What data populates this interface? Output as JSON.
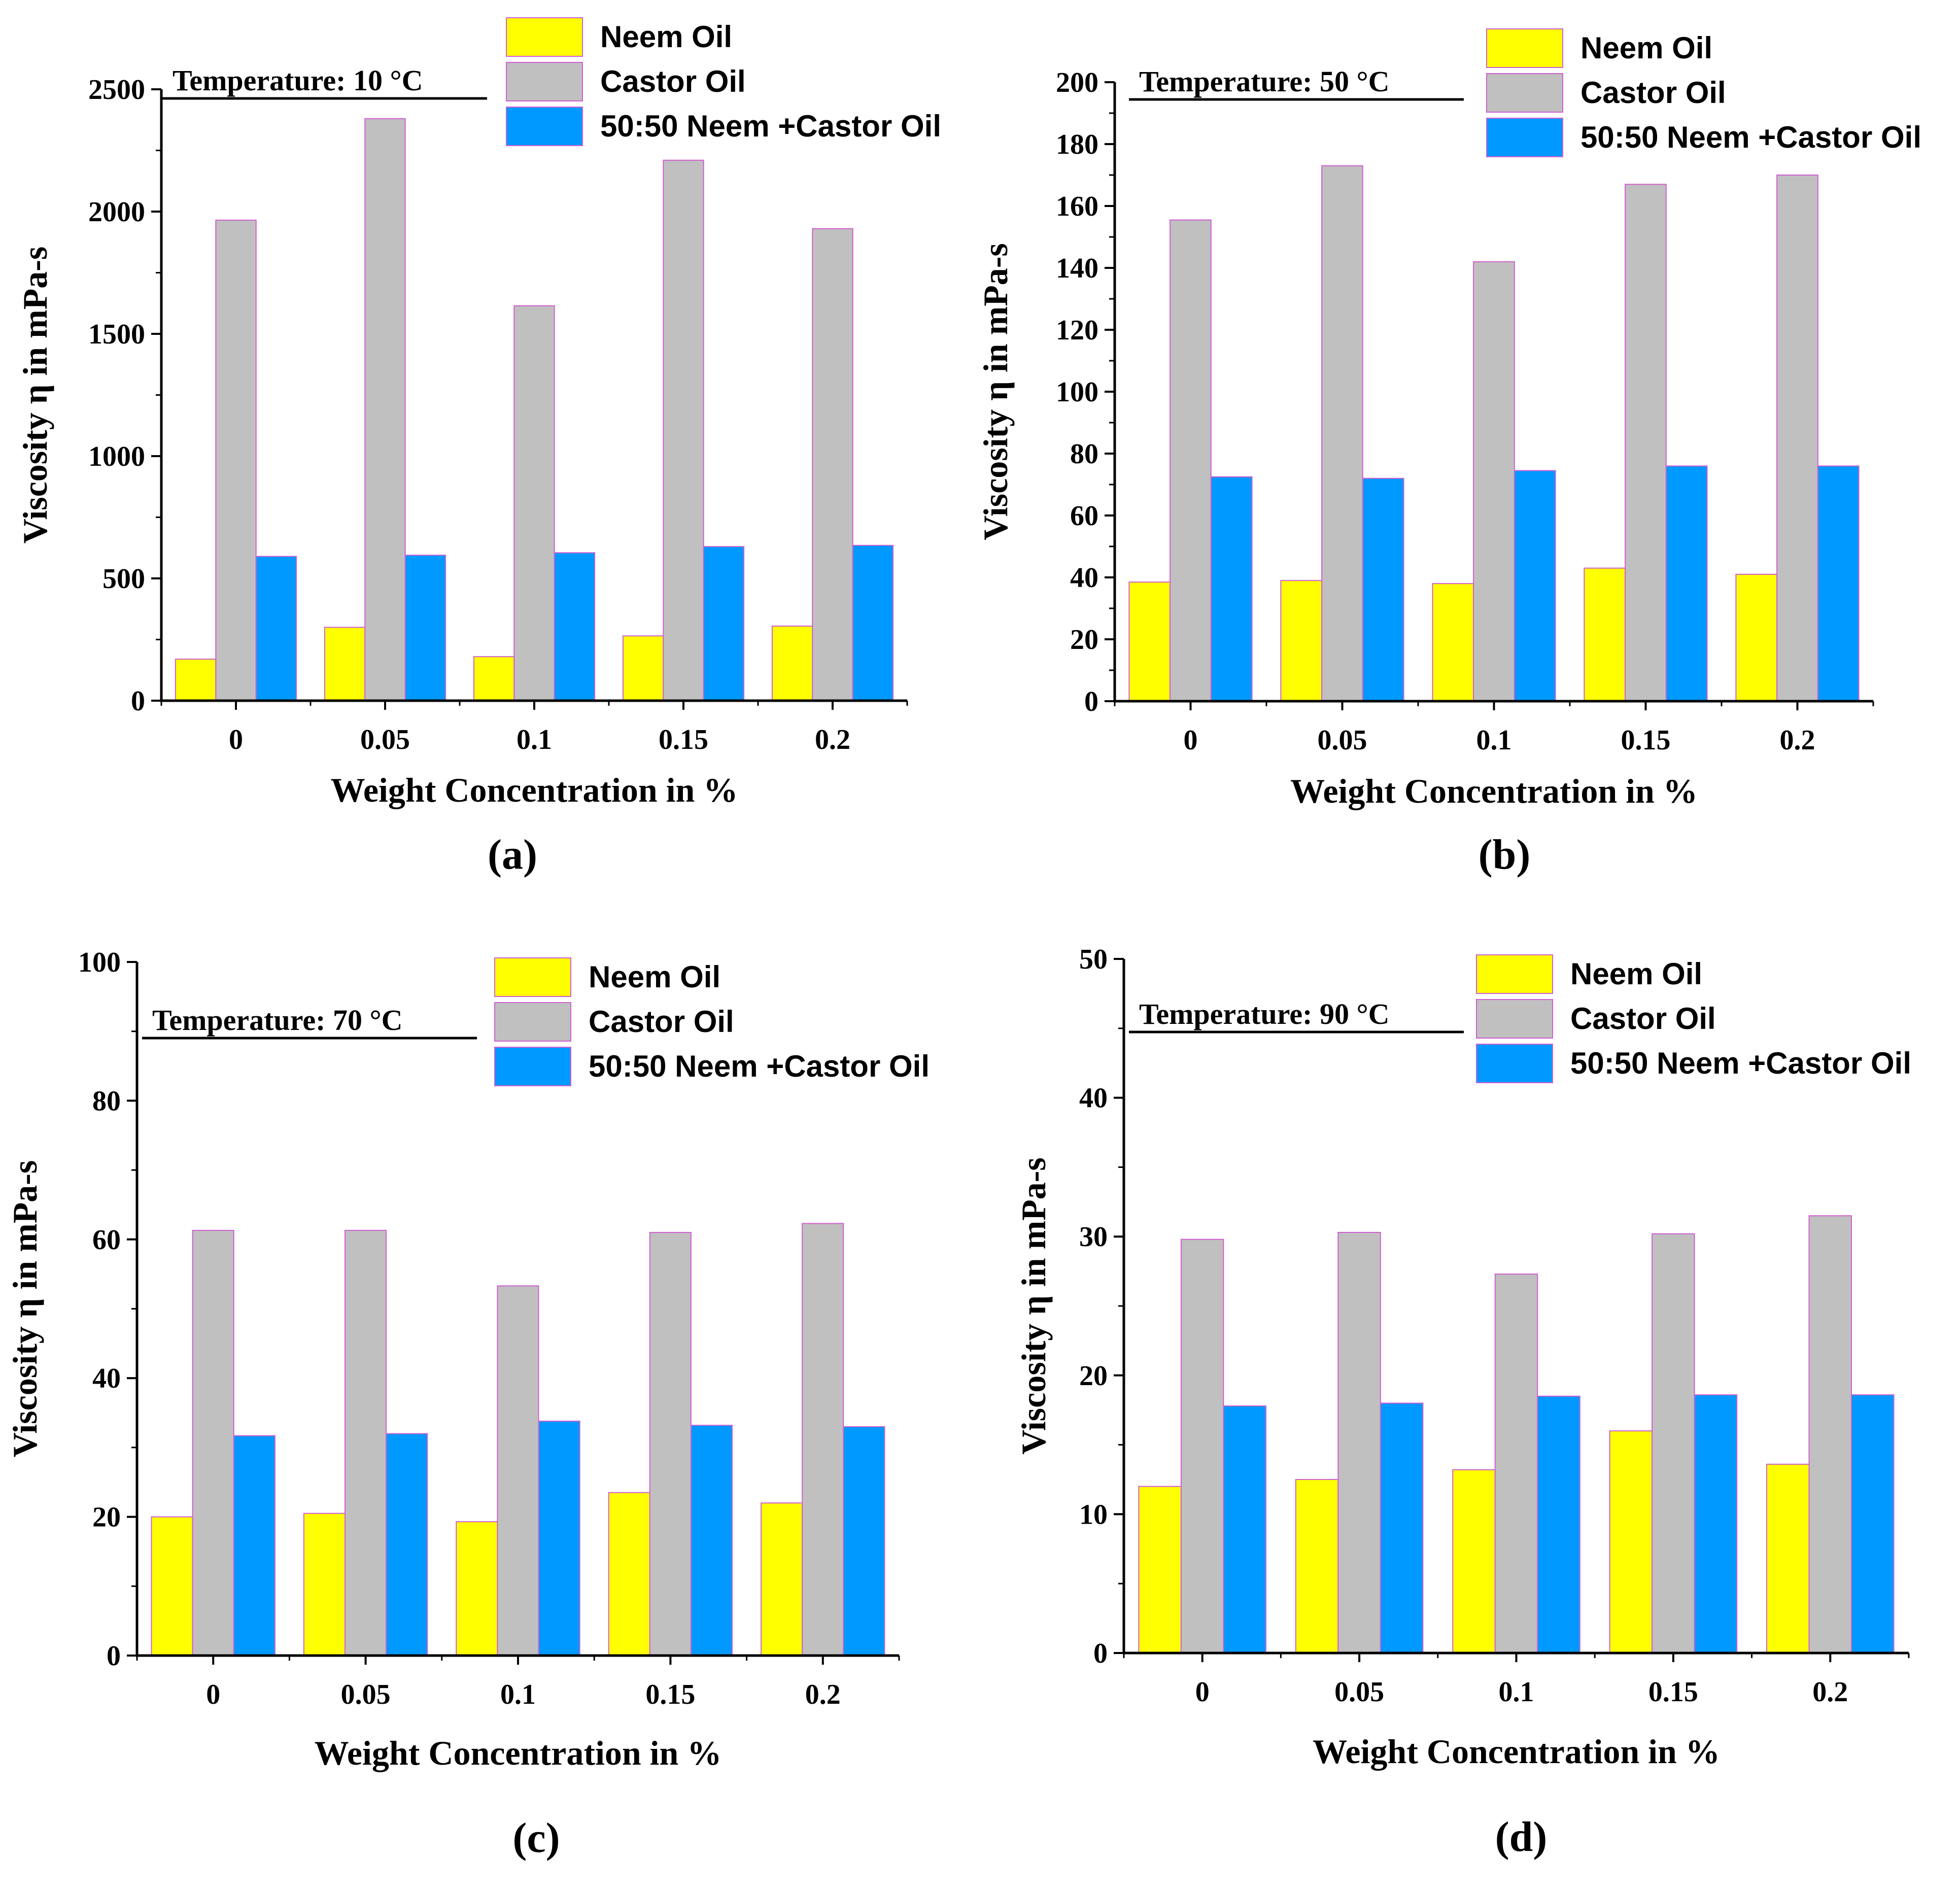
{
  "colors": {
    "neem": "#ffff00",
    "castor": "#c0c0c0",
    "blend": "#0099ff",
    "bar_edge": "#d060d0",
    "axis": "#000000"
  },
  "chart_data": [
    {
      "type": "bar",
      "panel_label": "(a)",
      "temperature_label": "Temperature: 10 °C",
      "xlabel": "Weight Concentration in %",
      "ylabel": "Viscosity η in mPa-s",
      "categories": [
        "0",
        "0.05",
        "0.1",
        "0.15",
        "0.2"
      ],
      "ylim": [
        0,
        2500
      ],
      "yticks": [
        0,
        500,
        1000,
        1500,
        2000,
        2500
      ],
      "legend_position": "top-right",
      "series": [
        {
          "name": "Neem Oil",
          "color_key": "neem",
          "values": [
            170,
            300,
            180,
            265,
            305
          ]
        },
        {
          "name": "Castor Oil",
          "color_key": "castor",
          "values": [
            1965,
            2380,
            1615,
            2210,
            1930
          ]
        },
        {
          "name": "50:50  Neem +Castor Oil",
          "color_key": "blend",
          "values": [
            590,
            595,
            605,
            630,
            635
          ]
        }
      ]
    },
    {
      "type": "bar",
      "panel_label": "(b)",
      "temperature_label": "Temperature: 50 °C",
      "xlabel": "Weight Concentration in %",
      "ylabel": "Viscosity η in mPa-s",
      "categories": [
        "0",
        "0.05",
        "0.1",
        "0.15",
        "0.2"
      ],
      "ylim": [
        0,
        200
      ],
      "yticks": [
        0,
        20,
        40,
        60,
        80,
        100,
        120,
        140,
        160,
        180,
        200
      ],
      "legend_position": "top-right",
      "series": [
        {
          "name": "Neem Oil",
          "color_key": "neem",
          "values": [
            38.5,
            39,
            38,
            43,
            41
          ]
        },
        {
          "name": "Castor Oil",
          "color_key": "castor",
          "values": [
            155.5,
            173,
            142,
            167,
            170
          ]
        },
        {
          "name": "50:50  Neem +Castor Oil",
          "color_key": "blend",
          "values": [
            72.5,
            72,
            74.5,
            76,
            76
          ]
        }
      ]
    },
    {
      "type": "bar",
      "panel_label": "(c)",
      "temperature_label": "Temperature: 70 °C",
      "xlabel": "Weight Concentration in %",
      "ylabel": "Viscosity η in mPa-s",
      "categories": [
        "0",
        "0.05",
        "0.1",
        "0.15",
        "0.2"
      ],
      "ylim": [
        0,
        100
      ],
      "yticks": [
        0,
        20,
        40,
        60,
        80,
        100
      ],
      "legend_position": "top-right",
      "series": [
        {
          "name": "Neem Oil",
          "color_key": "neem",
          "values": [
            20,
            20.5,
            19.3,
            23.5,
            22
          ]
        },
        {
          "name": "Castor Oil",
          "color_key": "castor",
          "values": [
            61.3,
            61.3,
            53.3,
            61,
            62.3
          ]
        },
        {
          "name": "50:50  Neem +Castor Oil",
          "color_key": "blend",
          "values": [
            31.7,
            32,
            33.8,
            33.2,
            33
          ]
        }
      ]
    },
    {
      "type": "bar",
      "panel_label": "(d)",
      "temperature_label": "Temperature: 90 °C",
      "xlabel": "Weight Concentration in %",
      "ylabel": "Viscosity η in mPa-s",
      "categories": [
        "0",
        "0.05",
        "0.1",
        "0.15",
        "0.2"
      ],
      "ylim": [
        0,
        50
      ],
      "yticks": [
        0,
        10,
        20,
        30,
        40,
        50
      ],
      "legend_position": "top-right",
      "series": [
        {
          "name": "Neem Oil",
          "color_key": "neem",
          "values": [
            12,
            12.5,
            13.2,
            16,
            13.6
          ]
        },
        {
          "name": "Castor Oil",
          "color_key": "castor",
          "values": [
            29.8,
            30.3,
            27.3,
            30.2,
            31.5
          ]
        },
        {
          "name": "50:50  Neem +Castor Oil",
          "color_key": "blend",
          "values": [
            17.8,
            18,
            18.5,
            18.6,
            18.6
          ]
        }
      ]
    }
  ]
}
